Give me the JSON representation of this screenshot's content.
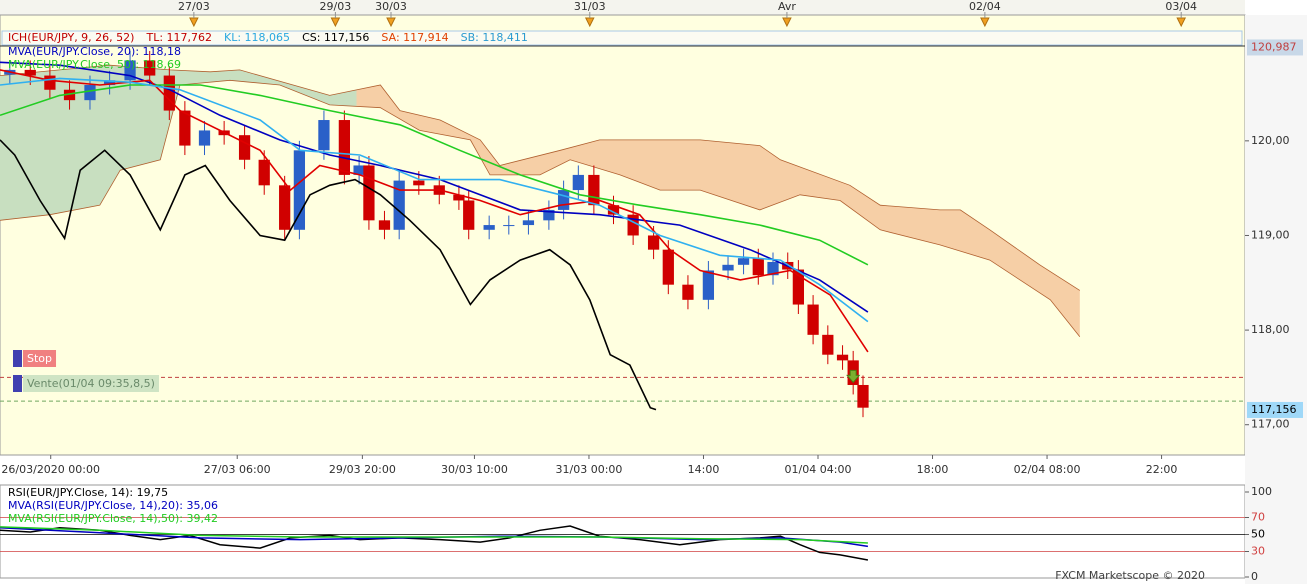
{
  "chart_data": [
    {
      "type": "candlestick",
      "indicator_labels": [
        {
          "text": "ICH(EUR/JPY, 9, 26, 52)",
          "color": "#c00000"
        },
        {
          "text": "TL: 117,762",
          "color": "#c00000"
        },
        {
          "text": "KL: 118,065",
          "color": "#2aa8e0"
        },
        {
          "text": "CS: 117,156",
          "color": "#000000"
        },
        {
          "text": "SA: 117,914",
          "color": "#e04000"
        },
        {
          "text": "SB: 118,411",
          "color": "#2a9ad0"
        }
      ],
      "x": [
        1.2,
        3.7,
        6.1,
        8.5,
        11,
        13.4,
        15.9,
        18.3,
        20.7,
        22.6,
        25,
        27.4,
        29.9,
        32.3,
        34.8,
        36.6,
        39.6,
        42.1,
        43.9,
        45.1,
        47,
        48.8,
        51.2,
        53.7,
        56.1,
        57.3,
        59.8,
        62.2,
        64.6,
        67.1,
        68.9,
        70.7,
        72.6,
        75,
        77.4,
        79.9,
        81.7,
        84.1,
        86.6,
        89,
        90.9,
        92.7,
        94.5,
        96.3,
        97.6,
        99.4,
        101.2,
        103,
        104.3,
        105.5
      ],
      "open": [
        120.7,
        120.75,
        120.69,
        120.54,
        120.43,
        120.59,
        120.64,
        120.85,
        120.69,
        120.32,
        119.95,
        120.11,
        120.06,
        119.8,
        119.53,
        119.06,
        119.9,
        120.22,
        119.64,
        119.74,
        119.16,
        119.06,
        119.58,
        119.53,
        119.43,
        119.37,
        119.06,
        119.11,
        119.11,
        119.16,
        119.27,
        119.48,
        119.64,
        119.32,
        119.22,
        119.0,
        118.85,
        118.48,
        118.32,
        118.63,
        118.69,
        118.76,
        118.58,
        118.72,
        118.64,
        118.27,
        117.95,
        117.74,
        117.68,
        117.42
      ],
      "high": [
        120.85,
        120.85,
        120.79,
        120.64,
        120.69,
        120.74,
        120.95,
        120.95,
        120.79,
        120.42,
        120.21,
        120.21,
        120.16,
        119.9,
        119.63,
        120.0,
        120.32,
        120.32,
        119.84,
        119.84,
        119.26,
        119.68,
        119.68,
        119.63,
        119.53,
        119.47,
        119.21,
        119.21,
        119.26,
        119.37,
        119.58,
        119.74,
        119.74,
        119.42,
        119.32,
        119.1,
        118.95,
        118.58,
        118.73,
        118.79,
        118.86,
        118.86,
        118.82,
        118.82,
        118.74,
        118.37,
        118.05,
        117.84,
        117.78,
        117.52
      ],
      "low": [
        120.6,
        120.59,
        120.44,
        120.33,
        120.33,
        120.49,
        120.54,
        120.59,
        120.22,
        119.85,
        119.85,
        119.96,
        119.7,
        119.43,
        118.96,
        118.96,
        119.8,
        119.54,
        119.54,
        119.06,
        118.96,
        118.96,
        119.43,
        119.33,
        119.27,
        118.96,
        118.96,
        119.01,
        119.01,
        119.06,
        119.17,
        119.38,
        119.22,
        119.12,
        118.9,
        118.75,
        118.38,
        118.22,
        118.22,
        118.53,
        118.59,
        118.48,
        118.48,
        118.54,
        118.17,
        117.85,
        117.64,
        117.58,
        117.32,
        117.08
      ],
      "close": [
        120.75,
        120.69,
        120.54,
        120.43,
        120.59,
        120.64,
        120.85,
        120.69,
        120.32,
        119.95,
        120.11,
        120.06,
        119.8,
        119.53,
        119.06,
        119.9,
        120.22,
        119.64,
        119.74,
        119.16,
        119.06,
        119.58,
        119.53,
        119.43,
        119.37,
        119.06,
        119.11,
        119.11,
        119.16,
        119.27,
        119.48,
        119.64,
        119.32,
        119.22,
        119.0,
        118.85,
        118.48,
        118.32,
        118.63,
        118.69,
        118.76,
        118.58,
        118.72,
        118.64,
        118.27,
        117.95,
        117.74,
        117.68,
        117.42,
        117.18
      ],
      "up_color": "#2a60c8",
      "down_color": "#d00000",
      "cloud": {
        "colors": [
          "#c8dfc0",
          "#f6cfa6"
        ],
        "edge_color": "#b06030",
        "upper": {
          "x": [
            0,
            7.3,
            13.4,
            20.8,
            25.7,
            29.3,
            40.3,
            46.5,
            48.9,
            53.8,
            58.7,
            61.1,
            68.5,
            73.3,
            85.6,
            92.9,
            95.4,
            103.9,
            107.6,
            114.9,
            117.4,
            121,
            127.1,
            132
          ],
          "values": [
            120.69,
            120.75,
            120.8,
            120.75,
            120.73,
            120.75,
            120.48,
            120.59,
            120.32,
            120.22,
            120.01,
            119.74,
            119.9,
            120.01,
            120.01,
            119.95,
            119.8,
            119.53,
            119.32,
            119.27,
            119.27,
            119.06,
            118.69,
            118.42
          ]
        },
        "lower": {
          "x": [
            0,
            6.1,
            12.2,
            14.7,
            19.6,
            22,
            28.1,
            34.2,
            40.3,
            46.5,
            51.3,
            57.5,
            59.9,
            66,
            69.7,
            75.8,
            80.7,
            85.6,
            92.9,
            97.8,
            102.7,
            107.6,
            114.9,
            121,
            128.4,
            132
          ],
          "values": [
            119.16,
            119.22,
            119.32,
            119.69,
            119.8,
            120.59,
            120.64,
            120.59,
            120.38,
            120.35,
            120.11,
            120.01,
            119.64,
            119.64,
            119.8,
            119.64,
            119.48,
            119.48,
            119.27,
            119.43,
            119.37,
            119.06,
            118.9,
            118.74,
            118.32,
            117.93
          ]
        }
      },
      "lines": [
        {
          "name": "MVA(EUR/JPY.Close, 20): 118,18",
          "color": "#0000c0",
          "x": [
            0,
            7.3,
            15.9,
            20.8,
            26.9,
            34.2,
            40.3,
            46.5,
            53.8,
            63.6,
            73.3,
            83.1,
            91.7,
            100.2,
            106.1
          ],
          "values": [
            120.83,
            120.8,
            120.69,
            120.54,
            120.27,
            120.01,
            119.85,
            119.74,
            119.59,
            119.27,
            119.22,
            119.11,
            118.85,
            118.53,
            118.19
          ]
        },
        {
          "name": "MVA(EUR/JPY.Close, 50): 118,69",
          "color": "#22cc22",
          "x": [
            0,
            7.3,
            15.9,
            24.5,
            31.8,
            40.3,
            48.9,
            56.2,
            63.6,
            70.9,
            78.2,
            85.6,
            92.9,
            100.2,
            106.1
          ],
          "values": [
            120.27,
            120.48,
            120.59,
            120.59,
            120.48,
            120.32,
            120.17,
            119.9,
            119.64,
            119.43,
            119.32,
            119.22,
            119.11,
            118.95,
            118.69
          ]
        },
        {
          "color": "#e00000",
          "x": [
            0,
            6.1,
            12.2,
            18.3,
            22,
            26.9,
            31.8,
            35.5,
            39.1,
            44,
            48.9,
            53.8,
            58.7,
            63.6,
            68.5,
            73.3,
            78.2,
            81.9,
            85.6,
            90.5,
            96.6,
            101.5,
            106.1
          ],
          "values": [
            120.75,
            120.64,
            120.59,
            120.64,
            120.32,
            120.11,
            119.9,
            119.48,
            119.74,
            119.64,
            119.48,
            119.48,
            119.37,
            119.22,
            119.32,
            119.37,
            119.22,
            118.85,
            118.63,
            118.53,
            118.63,
            118.37,
            117.77
          ]
        },
        {
          "color": "#30b0f0",
          "x": [
            0,
            7.3,
            15.9,
            22,
            31.8,
            36.7,
            44,
            51.3,
            61.1,
            68.5,
            73.3,
            80.7,
            88,
            95.4,
            100.2,
            106.1
          ],
          "values": [
            120.59,
            120.66,
            120.62,
            120.54,
            120.22,
            119.9,
            119.85,
            119.59,
            119.59,
            119.43,
            119.32,
            119,
            118.79,
            118.74,
            118.48,
            118.09
          ]
        },
        {
          "color": "#000000",
          "x": [
            0,
            1.8,
            4.9,
            7.9,
            9.8,
            12.8,
            15.9,
            19.6,
            22.6,
            25.1,
            28.1,
            31.8,
            34.8,
            37.9,
            40.3,
            43.4,
            46.5,
            50.1,
            53.8,
            57.5,
            59.9,
            63.6,
            67.2,
            69.7,
            72.1,
            74.6,
            77,
            79.5,
            80.2
          ],
          "values": [
            120.01,
            119.85,
            119.37,
            118.97,
            119.69,
            119.9,
            119.64,
            119.06,
            119.64,
            119.74,
            119.37,
            119,
            118.95,
            119.43,
            119.53,
            119.59,
            119.43,
            119.16,
            118.85,
            118.27,
            118.53,
            118.74,
            118.85,
            118.69,
            118.32,
            117.74,
            117.63,
            117.18,
            117.16
          ]
        }
      ],
      "levels": [
        {
          "value": 117.5,
          "color": "#c04040"
        },
        {
          "value": 117.25,
          "color": "#70a860"
        }
      ],
      "orders": [
        {
          "label": "Stop",
          "color": "#f08080"
        },
        {
          "label": "Vente(01/04 09:35,8,5)",
          "color": "#cfe4c4"
        }
      ],
      "price_labels": [
        {
          "value": 120.987,
          "label": "120,987",
          "color": "#c8d8e8"
        },
        {
          "value": 117.156,
          "label": "117,156",
          "color": "#9fd8f8"
        }
      ],
      "top_markers": [
        {
          "value": 23.7,
          "label": "27/03"
        },
        {
          "value": 41,
          "label": "29/03"
        },
        {
          "value": 47.8,
          "label": "30/03"
        },
        {
          "value": 72.1,
          "label": "31/03"
        },
        {
          "value": 96.2,
          "label": "Avr"
        },
        {
          "value": 120.4,
          "label": "02/04"
        },
        {
          "value": 144.4,
          "label": "03/04"
        }
      ],
      "xlim": [
        0,
        152.2
      ],
      "xticks": [
        {
          "value": 6.2,
          "label": "26/03/2020 00:00"
        },
        {
          "value": 29,
          "label": "27/03 06:00"
        },
        {
          "value": 44.3,
          "label": "29/03 20:00"
        },
        {
          "value": 58,
          "label": "30/03 10:00"
        },
        {
          "value": 72,
          "label": "31/03 00:00"
        },
        {
          "value": 86,
          "label": "14:00"
        },
        {
          "value": 100,
          "label": "01/04 04:00"
        },
        {
          "value": 114,
          "label": "18:00"
        },
        {
          "value": 128,
          "label": "02/04 08:00"
        },
        {
          "value": 142,
          "label": "22:00"
        }
      ],
      "ylim": [
        116.68,
        121.33
      ],
      "yticks": [
        {
          "value": 117,
          "label": "117,00"
        },
        {
          "value": 118,
          "label": "118,00"
        },
        {
          "value": 119,
          "label": "119,00"
        },
        {
          "value": 120,
          "label": "120,00"
        }
      ]
    },
    {
      "type": "line",
      "series": [
        {
          "name": "RSI(EUR/JPY.Close, 14): 19,75",
          "color": "#000000",
          "x": [
            0,
            3.7,
            7.3,
            12.2,
            15.9,
            19.6,
            23.2,
            26.9,
            31.8,
            35.5,
            40.3,
            44,
            48.9,
            53.8,
            58.7,
            62.3,
            66,
            69.7,
            73.3,
            78.2,
            83.1,
            88,
            92.9,
            95.4,
            97.8,
            100.2,
            102.7,
            106.1
          ],
          "values": [
            55,
            53,
            58,
            55,
            49,
            44,
            49,
            38,
            34,
            46,
            49,
            44,
            46,
            44,
            41,
            46,
            55,
            60,
            48,
            44,
            38,
            44,
            46,
            48,
            38,
            29,
            26,
            20
          ]
        },
        {
          "name": "MVA(RSI(EUR/JPY.Close, 14),20): 35,06",
          "color": "#0000c0",
          "x": [
            0,
            12.2,
            24.5,
            36.7,
            48.9,
            61.1,
            73.3,
            85.6,
            95.4,
            102.7,
            106.1
          ],
          "values": [
            58,
            52,
            46,
            44,
            46,
            48,
            47,
            44,
            46,
            41,
            36
          ]
        },
        {
          "name": "MVA(RSI(EUR/JPY.Close, 14),50): 39,42",
          "color": "#22cc22",
          "x": [
            0,
            12.2,
            24.5,
            36.7,
            48.9,
            61.1,
            73.3,
            85.6,
            97.8,
            106.1
          ],
          "values": [
            59,
            55,
            49,
            47,
            47,
            47,
            47,
            45,
            44,
            40
          ]
        }
      ],
      "reference_lines": [
        {
          "value": 70,
          "color": "#d04040"
        },
        {
          "value": 50,
          "color": "#000000"
        },
        {
          "value": 30,
          "color": "#d04040"
        }
      ],
      "xlim": [
        0,
        152.2
      ],
      "ylim": [
        0,
        100
      ],
      "yticks": [
        0,
        30,
        50,
        70,
        100
      ]
    }
  ],
  "footer": "FXCM Marketscope © 2020"
}
